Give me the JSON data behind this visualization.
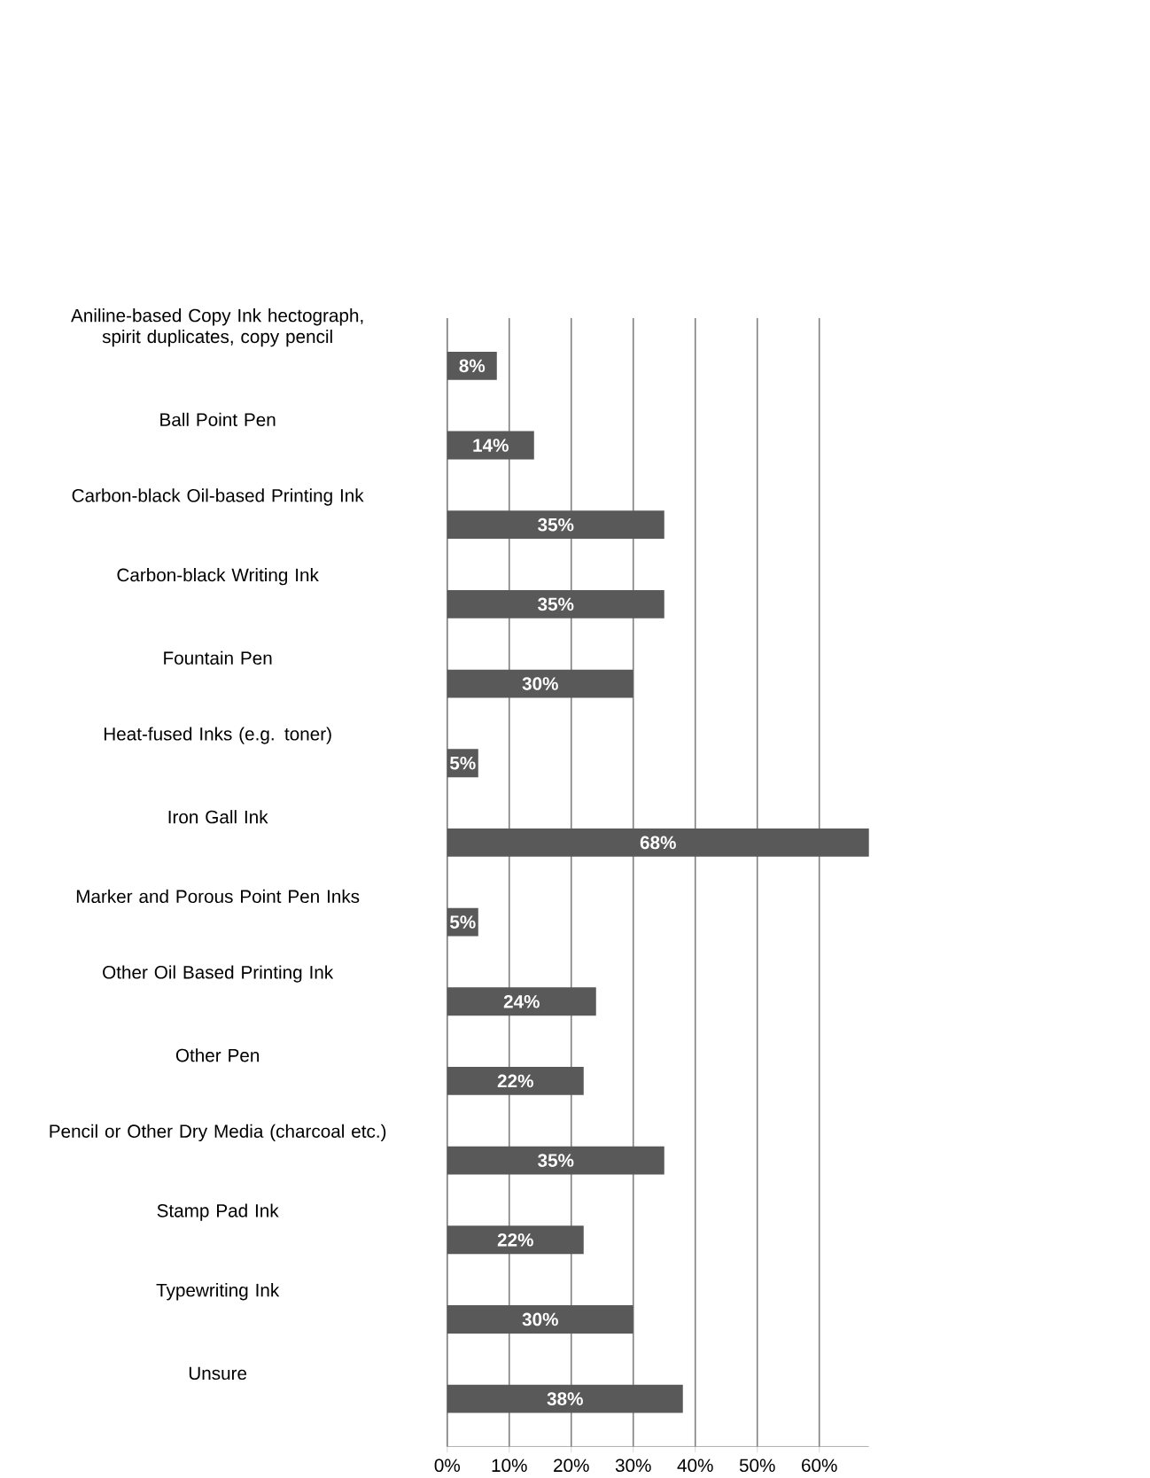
{
  "chart_data": {
    "type": "bar",
    "orientation": "horizontal",
    "categories": [
      "Aniline-based Copy Ink hectograph, spirit duplicates, copy pencil",
      "Ball Point Pen",
      "Carbon-black Oil-based Printing Ink",
      "Carbon-black Writing Ink",
      "Fountain Pen",
      "Heat-fused Inks (e.g. toner)",
      "Iron Gall Ink",
      "Marker and Porous Point Pen Inks",
      "Other Oil Based Printing Ink",
      "Other Pen",
      "Pencil or Other Dry Media (charcoal etc.)",
      "Stamp Pad Ink",
      "Typewriting Ink",
      "Unsure"
    ],
    "values": [
      8,
      14,
      35,
      35,
      30,
      5,
      68,
      5,
      24,
      22,
      35,
      22,
      30,
      38
    ],
    "value_labels": [
      "8%",
      "14%",
      "35%",
      "35%",
      "30%",
      "5%",
      "68%",
      "5%",
      "24%",
      "22%",
      "35%",
      "22%",
      "30%",
      "38%"
    ],
    "color": "#595959",
    "xlim": [
      0,
      68
    ],
    "xticks": [
      {
        "value": 0,
        "label": "0%"
      },
      {
        "value": 10,
        "label": "10%"
      },
      {
        "value": 20,
        "label": "20%"
      },
      {
        "value": 30,
        "label": "30%"
      },
      {
        "value": 40,
        "label": "40%"
      },
      {
        "value": 50,
        "label": "50%"
      },
      {
        "value": 60,
        "label": "60%"
      }
    ],
    "grid": "x"
  }
}
